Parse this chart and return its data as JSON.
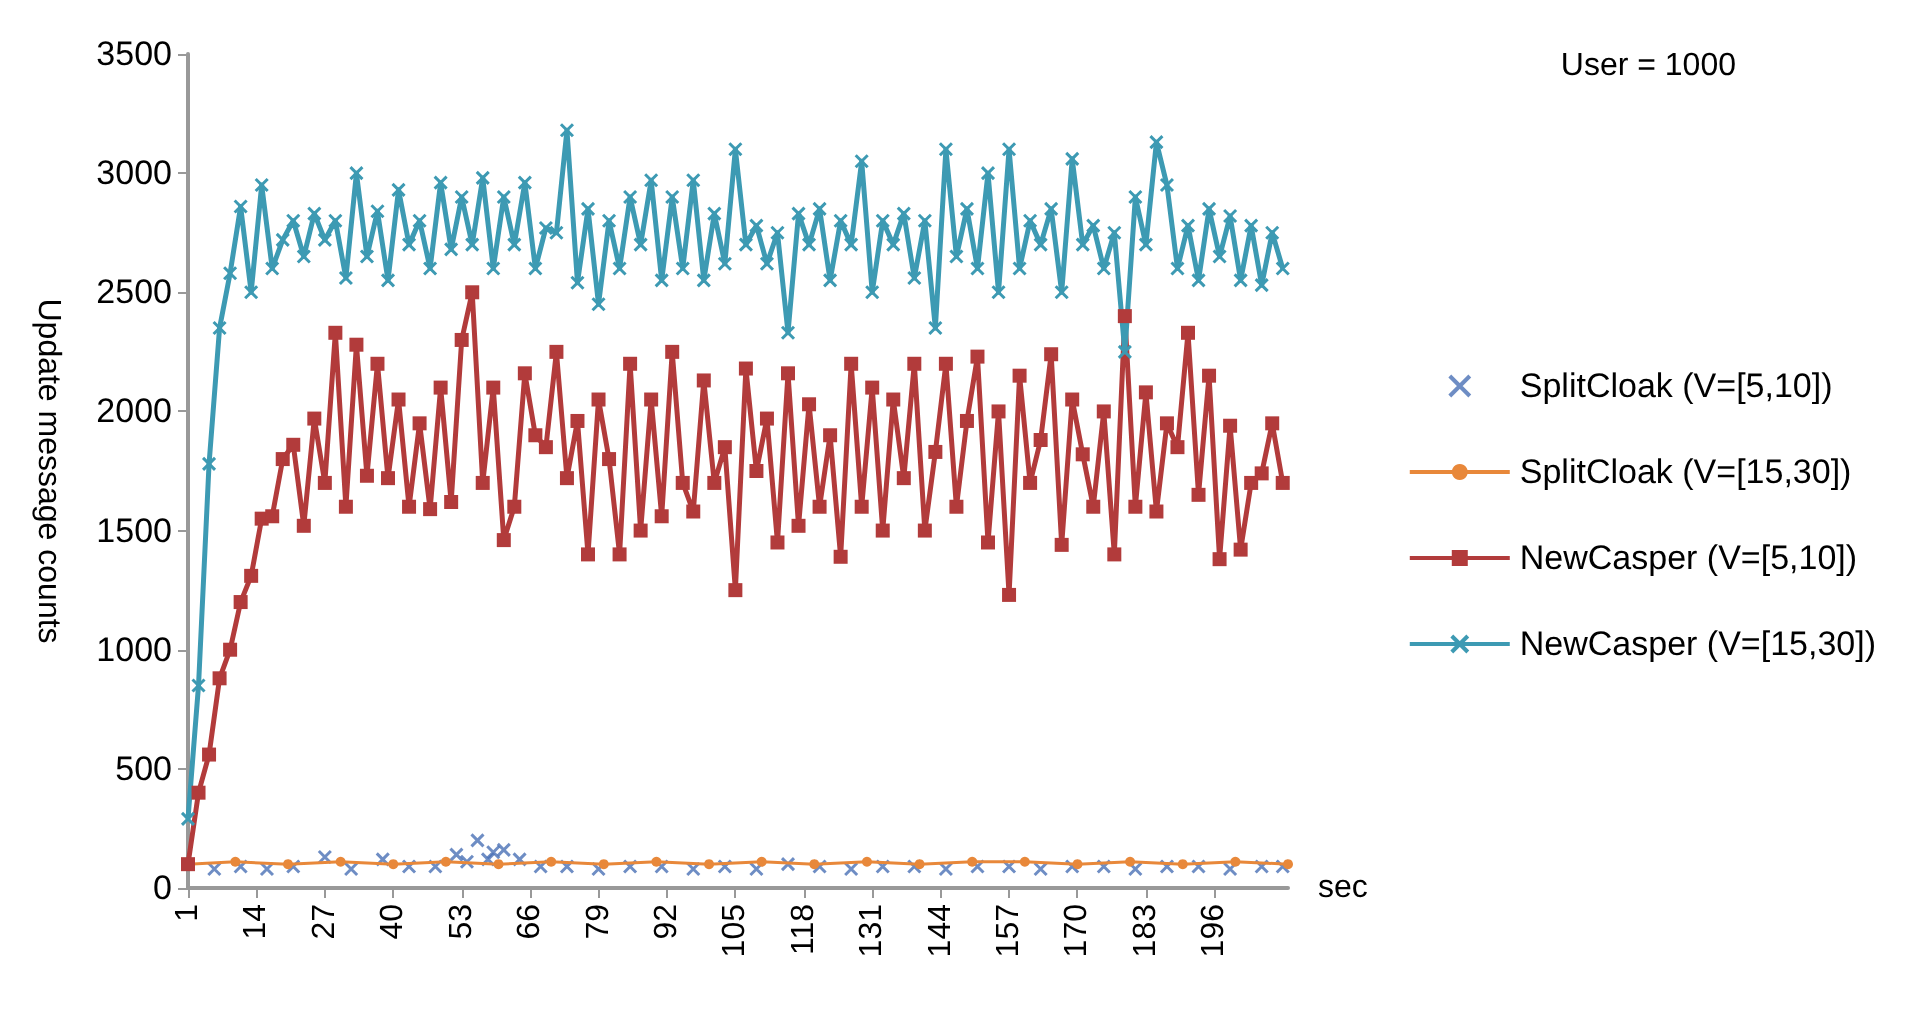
{
  "chart_data": {
    "type": "line",
    "title": "User = 1000",
    "xlabel": "sec",
    "ylabel": "Update message counts",
    "xlim": [
      1,
      210
    ],
    "xticks": [
      1,
      14,
      27,
      40,
      53,
      66,
      79,
      92,
      105,
      118,
      131,
      144,
      157,
      170,
      183,
      196
    ],
    "ylim": [
      0,
      3500
    ],
    "yticks": [
      0,
      500,
      1000,
      1500,
      2000,
      2500,
      3000,
      3500
    ],
    "grid": false,
    "legend": "right",
    "series": [
      {
        "name": "SplitCloak (V=[5,10])",
        "type": "scatter",
        "marker": "cross",
        "color": "#4a70b5",
        "x": [
          6,
          11,
          16,
          21,
          27,
          32,
          38,
          43,
          48,
          52,
          54,
          56,
          58,
          59,
          61,
          64,
          68,
          73,
          79,
          85,
          91,
          97,
          103,
          109,
          115,
          121,
          127,
          133,
          139,
          145,
          151,
          157,
          163,
          169,
          175,
          181,
          187,
          193,
          199,
          205,
          209
        ],
        "values": [
          80,
          90,
          80,
          90,
          130,
          80,
          120,
          90,
          90,
          140,
          110,
          200,
          120,
          150,
          160,
          120,
          90,
          90,
          80,
          90,
          90,
          80,
          90,
          80,
          100,
          90,
          80,
          90,
          90,
          80,
          90,
          90,
          80,
          90,
          90,
          80,
          90,
          90,
          80,
          90,
          90
        ]
      },
      {
        "name": "SplitCloak (V=[15,30])",
        "marker": "circle",
        "color": "#e8883a",
        "x": [
          1,
          10,
          20,
          30,
          40,
          50,
          60,
          70,
          80,
          90,
          100,
          110,
          120,
          130,
          140,
          150,
          160,
          170,
          180,
          190,
          200,
          210
        ],
        "values": [
          100,
          110,
          100,
          110,
          100,
          110,
          100,
          110,
          100,
          110,
          100,
          110,
          100,
          110,
          100,
          110,
          110,
          100,
          110,
          100,
          110,
          100
        ]
      },
      {
        "name": "NewCasper (V=[5,10])",
        "marker": "square",
        "color": "#b23b3b",
        "x": [
          1,
          3,
          5,
          7,
          9,
          11,
          13,
          15,
          17,
          19,
          21,
          23,
          25,
          27,
          29,
          31,
          33,
          35,
          37,
          39,
          41,
          43,
          45,
          47,
          49,
          51,
          53,
          55,
          57,
          59,
          61,
          63,
          65,
          67,
          69,
          71,
          73,
          75,
          77,
          79,
          81,
          83,
          85,
          87,
          89,
          91,
          93,
          95,
          97,
          99,
          101,
          103,
          105,
          107,
          109,
          111,
          113,
          115,
          117,
          119,
          121,
          123,
          125,
          127,
          129,
          131,
          133,
          135,
          137,
          139,
          141,
          143,
          145,
          147,
          149,
          151,
          153,
          155,
          157,
          159,
          161,
          163,
          165,
          167,
          169,
          171,
          173,
          175,
          177,
          179,
          181,
          183,
          185,
          187,
          189,
          191,
          193,
          195,
          197,
          199,
          201,
          203,
          205,
          207,
          209
        ],
        "values": [
          100,
          400,
          560,
          880,
          1000,
          1200,
          1310,
          1550,
          1560,
          1800,
          1860,
          1520,
          1970,
          1700,
          2330,
          1600,
          2280,
          1730,
          2200,
          1720,
          2050,
          1600,
          1950,
          1590,
          2100,
          1620,
          2300,
          2500,
          1700,
          2100,
          1460,
          1600,
          2160,
          1900,
          1850,
          2250,
          1720,
          1960,
          1400,
          2050,
          1800,
          1400,
          2200,
          1500,
          2050,
          1560,
          2250,
          1700,
          1580,
          2130,
          1700,
          1850,
          1250,
          2180,
          1750,
          1970,
          1450,
          2160,
          1520,
          2030,
          1600,
          1900,
          1390,
          2200,
          1600,
          2100,
          1500,
          2050,
          1720,
          2200,
          1500,
          1830,
          2200,
          1600,
          1960,
          2230,
          1450,
          2000,
          1230,
          2150,
          1700,
          1880,
          2240,
          1440,
          2050,
          1820,
          1600,
          2000,
          1400,
          2400,
          1600,
          2080,
          1580,
          1950,
          1850,
          2330,
          1650,
          2150,
          1380,
          1940,
          1420,
          1700,
          1740,
          1950,
          1700
        ]
      },
      {
        "name": "NewCasper (V=[15,30])",
        "marker": "cross",
        "color": "#3d9ab3",
        "x": [
          1,
          3,
          5,
          7,
          9,
          11,
          13,
          15,
          17,
          19,
          21,
          23,
          25,
          27,
          29,
          31,
          33,
          35,
          37,
          39,
          41,
          43,
          45,
          47,
          49,
          51,
          53,
          55,
          57,
          59,
          61,
          63,
          65,
          67,
          69,
          71,
          73,
          75,
          77,
          79,
          81,
          83,
          85,
          87,
          89,
          91,
          93,
          95,
          97,
          99,
          101,
          103,
          105,
          107,
          109,
          111,
          113,
          115,
          117,
          119,
          121,
          123,
          125,
          127,
          129,
          131,
          133,
          135,
          137,
          139,
          141,
          143,
          145,
          147,
          149,
          151,
          153,
          155,
          157,
          159,
          161,
          163,
          165,
          167,
          169,
          171,
          173,
          175,
          177,
          179,
          181,
          183,
          185,
          187,
          189,
          191,
          193,
          195,
          197,
          199,
          201,
          203,
          205,
          207,
          209
        ],
        "values": [
          290,
          850,
          1780,
          2350,
          2580,
          2860,
          2500,
          2950,
          2600,
          2720,
          2800,
          2650,
          2830,
          2720,
          2800,
          2560,
          3000,
          2650,
          2840,
          2550,
          2930,
          2700,
          2800,
          2600,
          2960,
          2680,
          2900,
          2700,
          2980,
          2600,
          2900,
          2700,
          2960,
          2600,
          2770,
          2750,
          3180,
          2540,
          2850,
          2450,
          2800,
          2600,
          2900,
          2700,
          2970,
          2550,
          2900,
          2600,
          2970,
          2550,
          2830,
          2620,
          3100,
          2700,
          2780,
          2620,
          2750,
          2330,
          2830,
          2700,
          2850,
          2550,
          2800,
          2700,
          3050,
          2500,
          2800,
          2700,
          2830,
          2560,
          2800,
          2350,
          3100,
          2650,
          2850,
          2600,
          3000,
          2500,
          3100,
          2600,
          2800,
          2700,
          2850,
          2500,
          3060,
          2700,
          2780,
          2600,
          2750,
          2250,
          2900,
          2700,
          3130,
          2950,
          2600,
          2780,
          2550,
          2850,
          2650,
          2820,
          2550,
          2780,
          2530,
          2750,
          2600
        ]
      }
    ]
  }
}
